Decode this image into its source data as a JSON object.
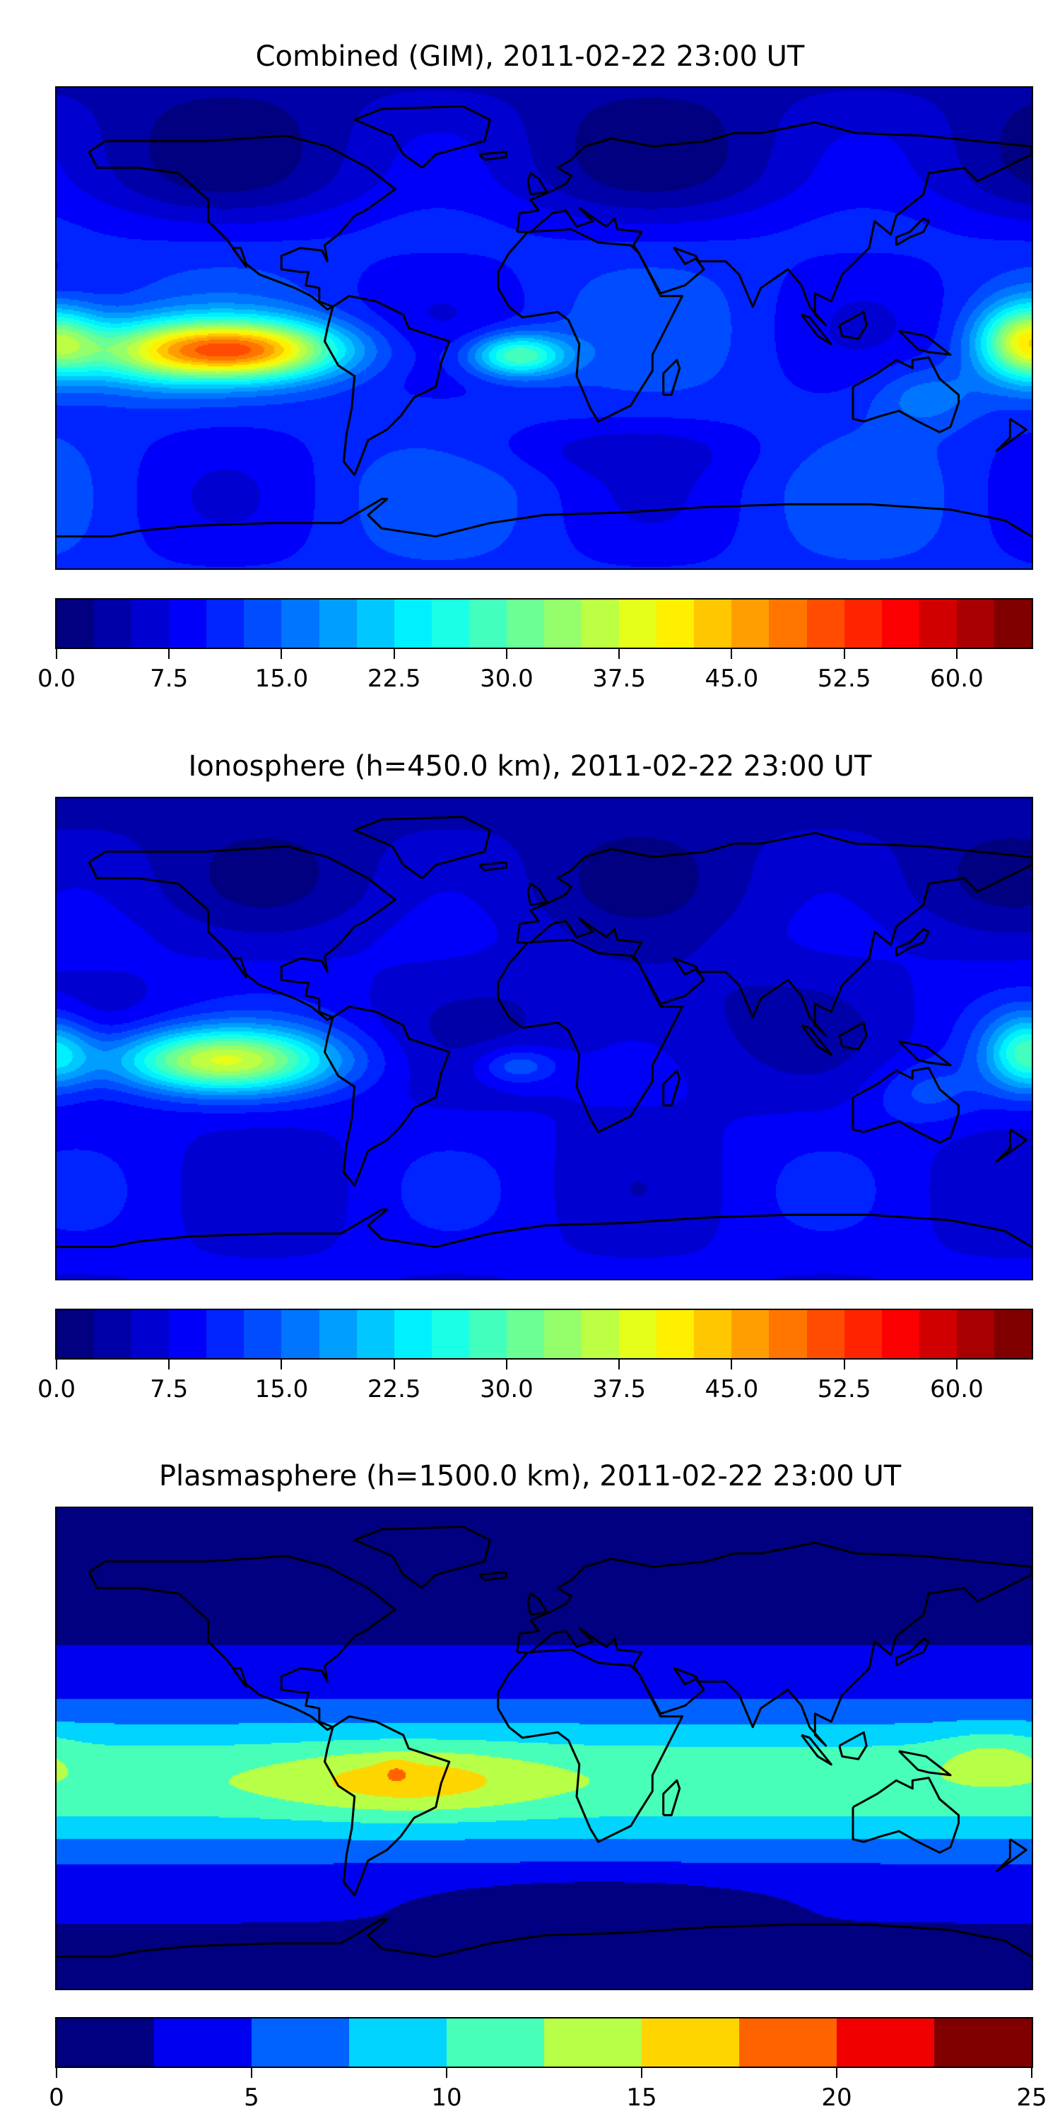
{
  "chart_data": [
    {
      "type": "heatmap",
      "title": "Combined (GIM), 2011-02-22 23:00 UT",
      "colorbar": {
        "min": 0,
        "max": 65,
        "step": 2.5,
        "ticks": [
          "0.0",
          "7.5",
          "15.0",
          "22.5",
          "30.0",
          "37.5",
          "45.0",
          "52.5",
          "60.0"
        ],
        "tick_values": [
          0,
          7.5,
          15,
          22.5,
          30,
          37.5,
          45,
          52.5,
          60
        ]
      },
      "lon_range": [
        -180,
        180
      ],
      "lat_range": [
        -90,
        90
      ],
      "features": {
        "peak_region": "eastern Pacific west of South America",
        "peak_value_approx": 47
      }
    },
    {
      "type": "heatmap",
      "title": "Ionosphere  (h=450.0 km), 2011-02-22 23:00 UT",
      "colorbar": {
        "min": 0,
        "max": 65,
        "step": 2.5,
        "ticks": [
          "0.0",
          "7.5",
          "15.0",
          "22.5",
          "30.0",
          "37.5",
          "45.0",
          "52.5",
          "60.0"
        ],
        "tick_values": [
          0,
          7.5,
          15,
          22.5,
          30,
          37.5,
          45,
          52.5,
          60
        ]
      },
      "lon_range": [
        -180,
        180
      ],
      "lat_range": [
        -90,
        90
      ],
      "features": {
        "peak_region": "eastern Pacific west of South America",
        "peak_value_approx": 38
      }
    },
    {
      "type": "heatmap",
      "title": "Plasmasphere (h=1500.0 km), 2011-02-22 23:00 UT",
      "colorbar": {
        "min": 0,
        "max": 25,
        "step": 2.5,
        "ticks": [
          "0",
          "5",
          "10",
          "15",
          "20",
          "25"
        ],
        "tick_values": [
          0,
          5,
          10,
          15,
          20,
          25
        ]
      },
      "lon_range": [
        -180,
        180
      ],
      "lat_range": [
        -90,
        90
      ],
      "features": {
        "peak_region": "Brazil",
        "peak_value_approx": 16
      }
    }
  ],
  "colors": {
    "coastline": "#000000",
    "background": "#ffffff"
  }
}
